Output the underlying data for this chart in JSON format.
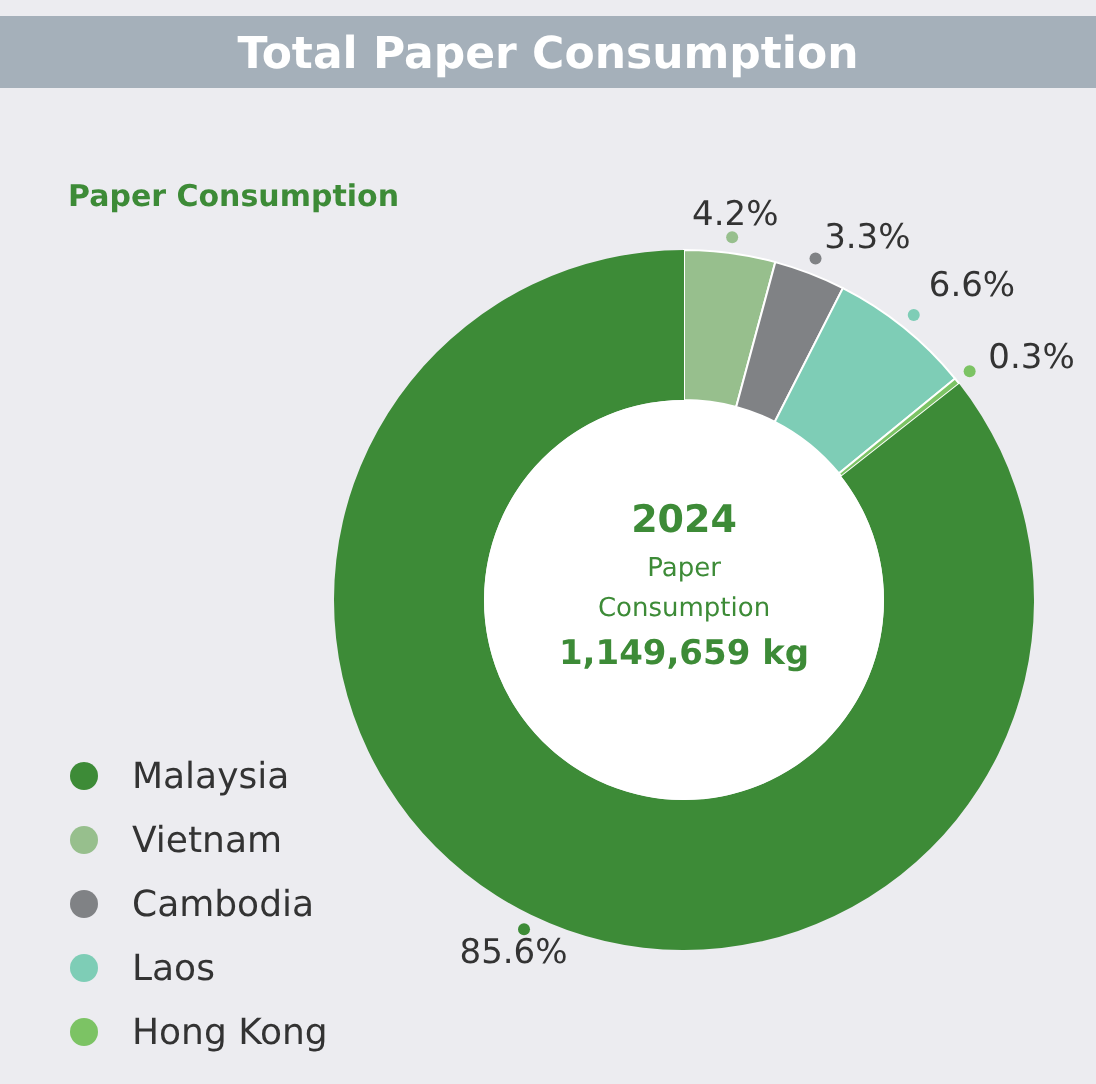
{
  "chart_data": {
    "type": "donut",
    "title": "Total Paper Consumption",
    "subtitle": "Paper Consumption",
    "categories": [
      "Malaysia",
      "Vietnam",
      "Cambodia",
      "Laos",
      "Hong Kong"
    ],
    "values": [
      85.6,
      4.2,
      3.3,
      6.6,
      0.3
    ],
    "colors": [
      "#3d8b37",
      "#97bf8d",
      "#808285",
      "#7ecdb6",
      "#7cc364"
    ],
    "value_labels": [
      "85.6%",
      "4.2%",
      "3.3%",
      "6.6%",
      "0.3%"
    ],
    "annotations": [
      "2024",
      "Paper",
      "Consumption",
      "1,149,659 kg"
    ],
    "legend": "bottom left"
  }
}
